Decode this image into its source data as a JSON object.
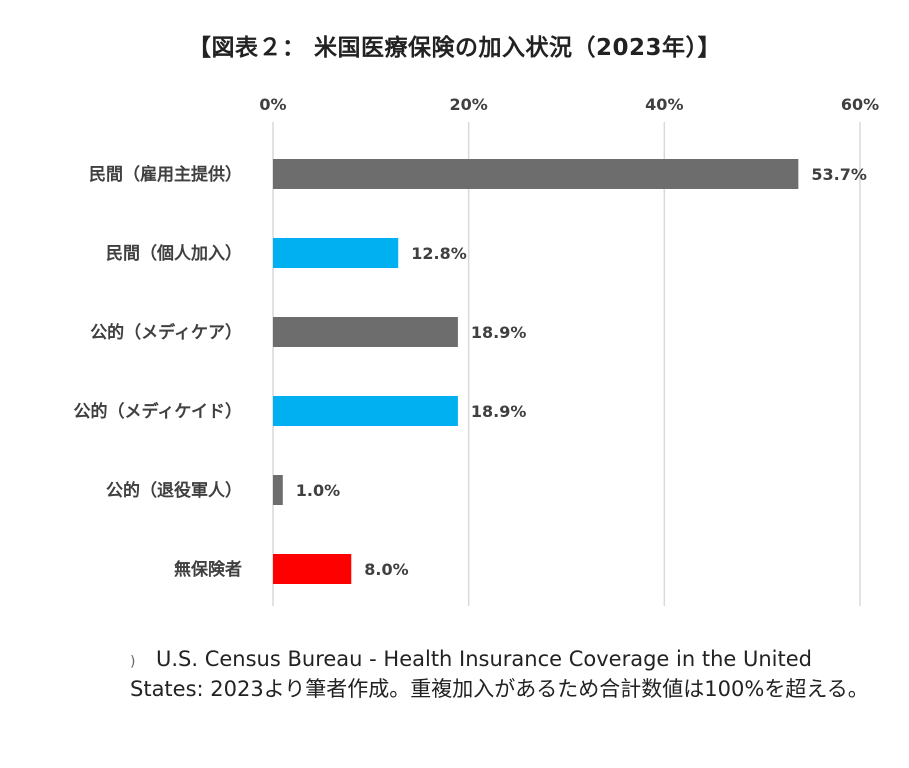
{
  "chart_data": {
    "type": "bar",
    "orientation": "horizontal",
    "title": "【図表２： 米国医療保険の加入状況（2023年）】",
    "categories": [
      "民間（雇用主提供）",
      "民間（個人加入）",
      "公的（メディケア）",
      "公的（メディケイド）",
      "公的（退役軍人）",
      "無保険者"
    ],
    "values": [
      53.7,
      12.8,
      18.9,
      18.9,
      1.0,
      8.0
    ],
    "value_labels": [
      "53.7%",
      "12.8%",
      "18.9%",
      "18.9%",
      "1.0%",
      "8.0%"
    ],
    "bar_colors": [
      "#6d6d6d",
      "#00b0f0",
      "#6d6d6d",
      "#00b0f0",
      "#6d6d6d",
      "#ff0000"
    ],
    "xlim": [
      0,
      60
    ],
    "xticks": [
      0,
      20,
      40,
      60
    ],
    "xtick_labels": [
      "0%",
      "20%",
      "40%",
      "60%"
    ],
    "x_axis_position": "top",
    "grid": true,
    "legend": "none"
  },
  "source_note": {
    "marker": ")",
    "text": "U.S. Census Bureau - Health Insurance Coverage in the United States: 2023より筆者作成。重複加入があるため合計数値は100%を超える。"
  },
  "colors": {
    "gridline": "#d9d9d9",
    "label_text": "#404040"
  }
}
